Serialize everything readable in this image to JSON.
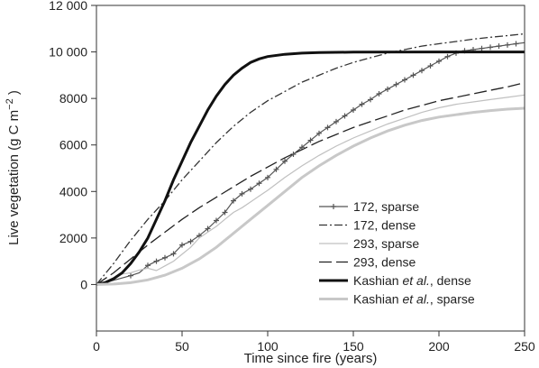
{
  "chart_data": {
    "type": "line",
    "title": "",
    "xlabel": "Time since fire (years)",
    "ylabel": {
      "main": "Live vegetation (g C m",
      "sup": "−2",
      "close": " )"
    },
    "xlim": [
      0,
      250
    ],
    "ylim": [
      -2000,
      12000
    ],
    "xticks": [
      0,
      50,
      100,
      150,
      200,
      250
    ],
    "yticks": [
      0,
      2000,
      4000,
      6000,
      8000,
      10000,
      12000
    ],
    "xtick_labels": [
      "0",
      "50",
      "100",
      "150",
      "200",
      "250"
    ],
    "ytick_labels": [
      "0",
      "2000",
      "4000",
      "6000",
      "8000",
      "10 000",
      "12 000"
    ],
    "grid": false,
    "legend_position": "lower-right",
    "series": [
      {
        "name": "172, sparse",
        "legend_parts": [
          {
            "text": "172, sparse",
            "italic": false
          }
        ],
        "color": "#555555",
        "style": "solid-plus",
        "points": [
          [
            0,
            0
          ],
          [
            5,
            80
          ],
          [
            10,
            180
          ],
          [
            15,
            280
          ],
          [
            20,
            380
          ],
          [
            25,
            500
          ],
          [
            30,
            820
          ],
          [
            35,
            1000
          ],
          [
            40,
            1150
          ],
          [
            45,
            1320
          ],
          [
            50,
            1700
          ],
          [
            55,
            1850
          ],
          [
            60,
            2100
          ],
          [
            65,
            2400
          ],
          [
            70,
            2750
          ],
          [
            75,
            3100
          ],
          [
            80,
            3600
          ],
          [
            85,
            3900
          ],
          [
            90,
            4100
          ],
          [
            95,
            4350
          ],
          [
            100,
            4600
          ],
          [
            105,
            4950
          ],
          [
            110,
            5300
          ],
          [
            115,
            5600
          ],
          [
            120,
            5900
          ],
          [
            125,
            6200
          ],
          [
            130,
            6500
          ],
          [
            135,
            6750
          ],
          [
            140,
            7000
          ],
          [
            145,
            7250
          ],
          [
            150,
            7500
          ],
          [
            155,
            7750
          ],
          [
            160,
            7950
          ],
          [
            165,
            8200
          ],
          [
            170,
            8400
          ],
          [
            175,
            8600
          ],
          [
            180,
            8800
          ],
          [
            185,
            9000
          ],
          [
            190,
            9200
          ],
          [
            195,
            9400
          ],
          [
            200,
            9600
          ],
          [
            205,
            9800
          ],
          [
            210,
            9950
          ],
          [
            215,
            10050
          ],
          [
            220,
            10100
          ],
          [
            225,
            10150
          ],
          [
            230,
            10200
          ],
          [
            235,
            10250
          ],
          [
            240,
            10300
          ],
          [
            245,
            10350
          ],
          [
            250,
            10400
          ]
        ],
        "markers": [
          20,
          30,
          35,
          40,
          45,
          50,
          55,
          60,
          65,
          70,
          75,
          80,
          85,
          90,
          95,
          100,
          105,
          110,
          115,
          120,
          125,
          130,
          135,
          140,
          145,
          150,
          155,
          160,
          165,
          170,
          175,
          180,
          185,
          190,
          195,
          200,
          205,
          210,
          215,
          220,
          225,
          230,
          235,
          240,
          245
        ]
      },
      {
        "name": "172, dense",
        "legend_parts": [
          {
            "text": "172, dense",
            "italic": false
          }
        ],
        "color": "#333333",
        "style": "dashdot",
        "points": [
          [
            0,
            0
          ],
          [
            10,
            900
          ],
          [
            20,
            1900
          ],
          [
            30,
            2800
          ],
          [
            40,
            3600
          ],
          [
            50,
            4500
          ],
          [
            60,
            5300
          ],
          [
            70,
            6100
          ],
          [
            80,
            6800
          ],
          [
            90,
            7400
          ],
          [
            100,
            7900
          ],
          [
            110,
            8300
          ],
          [
            120,
            8700
          ],
          [
            130,
            9000
          ],
          [
            140,
            9300
          ],
          [
            150,
            9550
          ],
          [
            160,
            9750
          ],
          [
            170,
            9950
          ],
          [
            180,
            10100
          ],
          [
            190,
            10250
          ],
          [
            200,
            10350
          ],
          [
            210,
            10450
          ],
          [
            220,
            10550
          ],
          [
            230,
            10630
          ],
          [
            240,
            10700
          ],
          [
            250,
            10780
          ]
        ]
      },
      {
        "name": "293, sparse",
        "legend_parts": [
          {
            "text": "293, sparse",
            "italic": false
          }
        ],
        "color": "#c0c0c0",
        "style": "solid-thin",
        "points": [
          [
            0,
            0
          ],
          [
            5,
            80
          ],
          [
            10,
            250
          ],
          [
            15,
            450
          ],
          [
            20,
            500
          ],
          [
            25,
            620
          ],
          [
            30,
            700
          ],
          [
            35,
            600
          ],
          [
            40,
            800
          ],
          [
            45,
            1000
          ],
          [
            50,
            1300
          ],
          [
            55,
            1600
          ],
          [
            60,
            2000
          ],
          [
            65,
            2250
          ],
          [
            70,
            2500
          ],
          [
            75,
            2800
          ],
          [
            80,
            3100
          ],
          [
            85,
            3300
          ],
          [
            90,
            3550
          ],
          [
            95,
            3800
          ],
          [
            100,
            4050
          ],
          [
            110,
            4600
          ],
          [
            120,
            5100
          ],
          [
            130,
            5550
          ],
          [
            140,
            5950
          ],
          [
            150,
            6300
          ],
          [
            160,
            6600
          ],
          [
            170,
            6900
          ],
          [
            180,
            7150
          ],
          [
            190,
            7400
          ],
          [
            200,
            7600
          ],
          [
            210,
            7750
          ],
          [
            220,
            7850
          ],
          [
            230,
            7950
          ],
          [
            240,
            8050
          ],
          [
            250,
            8150
          ]
        ]
      },
      {
        "name": "293, dense",
        "legend_parts": [
          {
            "text": "293, dense",
            "italic": false
          }
        ],
        "color": "#222222",
        "style": "longdash",
        "points": [
          [
            0,
            0
          ],
          [
            10,
            500
          ],
          [
            20,
            1100
          ],
          [
            30,
            1700
          ],
          [
            40,
            2250
          ],
          [
            50,
            2800
          ],
          [
            60,
            3300
          ],
          [
            70,
            3750
          ],
          [
            80,
            4200
          ],
          [
            90,
            4650
          ],
          [
            100,
            5050
          ],
          [
            110,
            5450
          ],
          [
            120,
            5800
          ],
          [
            130,
            6150
          ],
          [
            140,
            6450
          ],
          [
            150,
            6750
          ],
          [
            160,
            7000
          ],
          [
            170,
            7250
          ],
          [
            180,
            7500
          ],
          [
            190,
            7700
          ],
          [
            200,
            7900
          ],
          [
            210,
            8050
          ],
          [
            220,
            8200
          ],
          [
            230,
            8350
          ],
          [
            240,
            8500
          ],
          [
            250,
            8680
          ]
        ]
      },
      {
        "name": "Kashian et al., dense",
        "legend_parts": [
          {
            "text": "Kashian ",
            "italic": false
          },
          {
            "text": "et al.",
            "italic": true
          },
          {
            "text": ", dense",
            "italic": false
          }
        ],
        "color": "#111111",
        "style": "thick",
        "points": [
          [
            0,
            0
          ],
          [
            5,
            80
          ],
          [
            10,
            250
          ],
          [
            15,
            500
          ],
          [
            20,
            900
          ],
          [
            25,
            1400
          ],
          [
            30,
            2000
          ],
          [
            35,
            2800
          ],
          [
            40,
            3600
          ],
          [
            45,
            4500
          ],
          [
            50,
            5300
          ],
          [
            55,
            6100
          ],
          [
            60,
            6800
          ],
          [
            65,
            7500
          ],
          [
            70,
            8100
          ],
          [
            75,
            8600
          ],
          [
            80,
            9000
          ],
          [
            85,
            9300
          ],
          [
            90,
            9550
          ],
          [
            95,
            9700
          ],
          [
            100,
            9800
          ],
          [
            110,
            9900
          ],
          [
            120,
            9950
          ],
          [
            130,
            9970
          ],
          [
            150,
            9990
          ],
          [
            200,
            10000
          ],
          [
            250,
            10000
          ]
        ]
      },
      {
        "name": "Kashian et al., sparse",
        "legend_parts": [
          {
            "text": "Kashian ",
            "italic": false
          },
          {
            "text": "et al.",
            "italic": true
          },
          {
            "text": ", sparse",
            "italic": false
          }
        ],
        "color": "#c8c8c8",
        "style": "thick",
        "points": [
          [
            0,
            0
          ],
          [
            10,
            20
          ],
          [
            20,
            80
          ],
          [
            30,
            200
          ],
          [
            40,
            400
          ],
          [
            50,
            700
          ],
          [
            60,
            1100
          ],
          [
            70,
            1600
          ],
          [
            80,
            2200
          ],
          [
            90,
            2800
          ],
          [
            100,
            3400
          ],
          [
            110,
            4000
          ],
          [
            120,
            4600
          ],
          [
            130,
            5100
          ],
          [
            140,
            5550
          ],
          [
            150,
            5950
          ],
          [
            160,
            6300
          ],
          [
            170,
            6600
          ],
          [
            180,
            6850
          ],
          [
            190,
            7050
          ],
          [
            200,
            7200
          ],
          [
            210,
            7300
          ],
          [
            220,
            7400
          ],
          [
            230,
            7480
          ],
          [
            240,
            7540
          ],
          [
            250,
            7580
          ]
        ]
      }
    ]
  }
}
